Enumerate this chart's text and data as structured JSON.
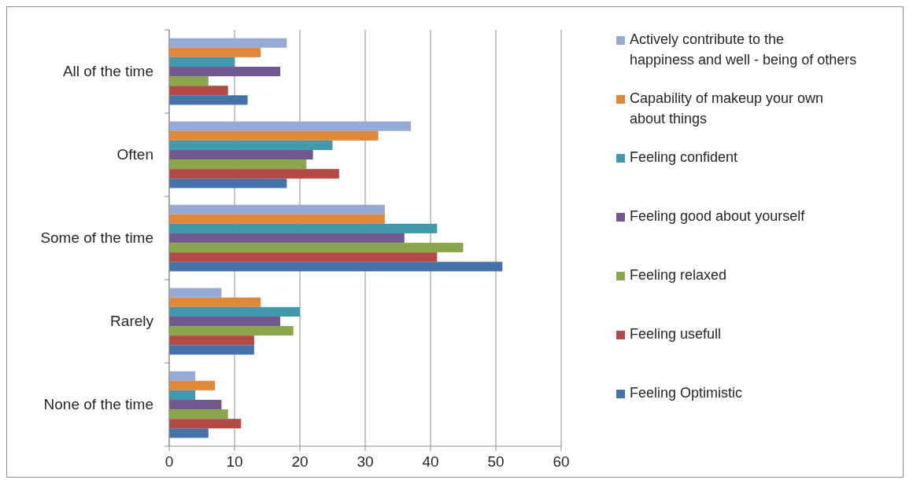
{
  "chart_data": {
    "type": "bar",
    "orientation": "horizontal",
    "categories": [
      "All of the time",
      "Often",
      "Some of the time",
      "Rarely",
      "None of the time"
    ],
    "series": [
      {
        "name": "Actively contribute to the happiness and well - being of others",
        "color": "#95abd6",
        "values": [
          18,
          37,
          33,
          8,
          4
        ]
      },
      {
        "name": "Capability of makeup your own about things",
        "color": "#e0873a",
        "values": [
          14,
          32,
          33,
          14,
          7
        ]
      },
      {
        "name": "Feeling confident",
        "color": "#4198af",
        "values": [
          10,
          25,
          41,
          20,
          4
        ]
      },
      {
        "name": "Feeling  good about yourself",
        "color": "#71588f",
        "values": [
          17,
          22,
          36,
          17,
          8
        ]
      },
      {
        "name": "Feeling relaxed",
        "color": "#8aa84b",
        "values": [
          6,
          21,
          45,
          19,
          9
        ]
      },
      {
        "name": "Feeling usefull",
        "color": "#b34a47",
        "values": [
          9,
          26,
          41,
          13,
          11
        ]
      },
      {
        "name": "Feeling Optimistic",
        "color": "#4572a7",
        "values": [
          12,
          18,
          51,
          13,
          6
        ]
      }
    ],
    "xlim": [
      0,
      60
    ],
    "xticks": [
      0,
      10,
      20,
      30,
      40,
      50,
      60
    ],
    "grid": "x",
    "legend": "right"
  }
}
